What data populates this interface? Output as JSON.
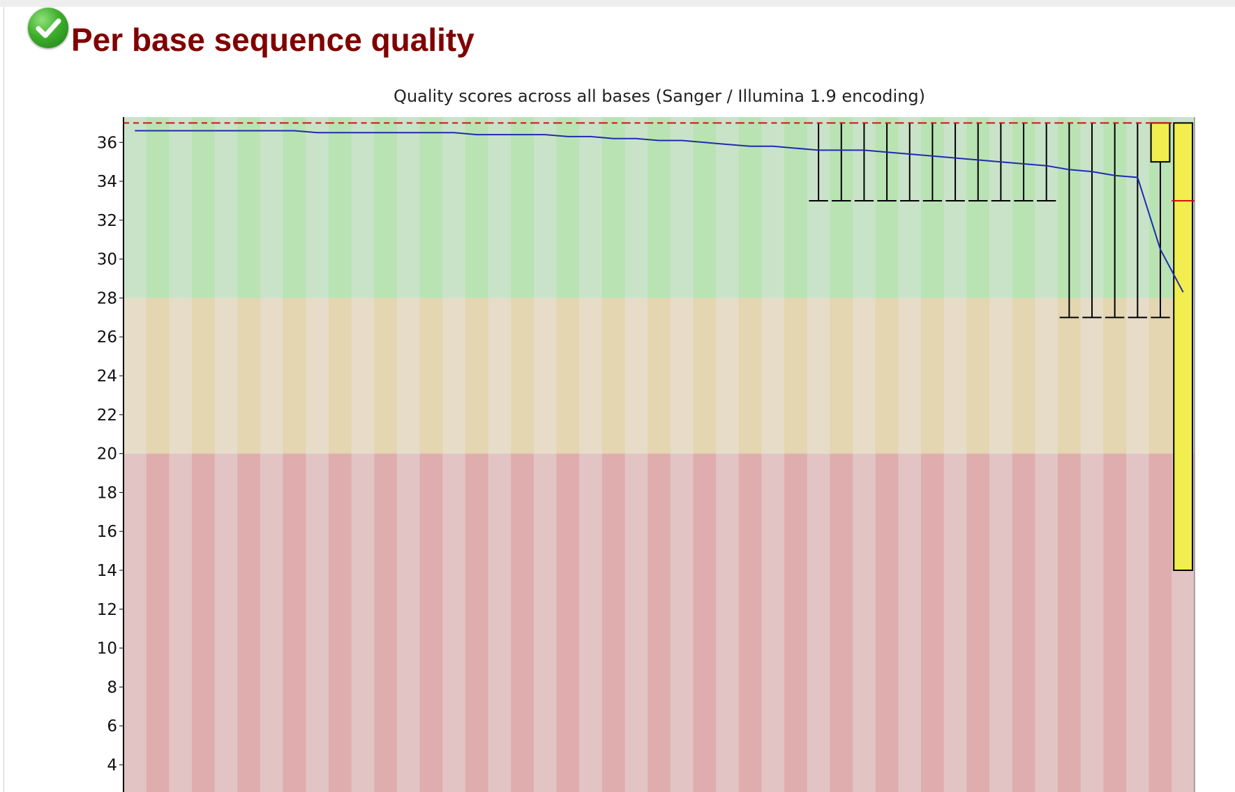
{
  "section": {
    "title": "Per base sequence quality",
    "status_icon": "green-check-icon"
  },
  "chart_data": {
    "type": "box",
    "title": "Quality scores across all bases (Sanger / Illumina 1.9 encoding)",
    "xlabel": "",
    "ylabel": "",
    "yticks": [
      4,
      6,
      8,
      10,
      12,
      14,
      16,
      18,
      20,
      22,
      24,
      26,
      28,
      30,
      32,
      34,
      36
    ],
    "ylim": [
      2.6,
      37.3
    ],
    "zones": [
      {
        "from": 28,
        "to": 37.3,
        "colors": [
          "#c9e3c9",
          "#b9e3b3"
        ]
      },
      {
        "from": 20,
        "to": 28,
        "colors": [
          "#e6dcc8",
          "#e3d6b0"
        ]
      },
      {
        "from": 2.6,
        "to": 20,
        "colors": [
          "#e2c4c4",
          "#dfadad"
        ]
      }
    ],
    "colors": {
      "mean_line": "#1f2bb0",
      "median": "#d01010",
      "box_fill": "#f2ee4f",
      "whisker": "#000000",
      "frame": "#000000"
    },
    "mean": [
      36.6,
      36.6,
      36.6,
      36.6,
      36.6,
      36.6,
      36.6,
      36.6,
      36.5,
      36.5,
      36.5,
      36.5,
      36.5,
      36.5,
      36.5,
      36.4,
      36.4,
      36.4,
      36.4,
      36.3,
      36.3,
      36.2,
      36.2,
      36.1,
      36.1,
      36.0,
      35.9,
      35.8,
      35.8,
      35.7,
      35.6,
      35.6,
      35.6,
      35.5,
      35.4,
      35.3,
      35.2,
      35.1,
      35.0,
      34.9,
      34.8,
      34.6,
      34.5,
      34.3,
      34.2,
      30.5,
      28.3
    ],
    "medians": [
      37,
      37,
      37,
      37,
      37,
      37,
      37,
      37,
      37,
      37,
      37,
      37,
      37,
      37,
      37,
      37,
      37,
      37,
      37,
      37,
      37,
      37,
      37,
      37,
      37,
      37,
      37,
      37,
      37,
      37,
      37,
      37,
      37,
      37,
      37,
      37,
      37,
      37,
      37,
      37,
      37,
      37,
      37,
      37,
      37,
      37,
      33
    ],
    "box_q1": [
      null,
      null,
      null,
      null,
      null,
      null,
      null,
      null,
      null,
      null,
      null,
      null,
      null,
      null,
      null,
      null,
      null,
      null,
      null,
      null,
      null,
      null,
      null,
      null,
      null,
      null,
      null,
      null,
      null,
      null,
      null,
      null,
      null,
      null,
      null,
      null,
      null,
      null,
      null,
      null,
      null,
      null,
      null,
      null,
      null,
      35,
      14
    ],
    "box_q3": [
      null,
      null,
      null,
      null,
      null,
      null,
      null,
      null,
      null,
      null,
      null,
      null,
      null,
      null,
      null,
      null,
      null,
      null,
      null,
      null,
      null,
      null,
      null,
      null,
      null,
      null,
      null,
      null,
      null,
      null,
      null,
      null,
      null,
      null,
      null,
      null,
      null,
      null,
      null,
      null,
      null,
      null,
      null,
      null,
      null,
      37,
      37
    ],
    "whisker_low": [
      null,
      null,
      null,
      null,
      null,
      null,
      null,
      null,
      null,
      null,
      null,
      null,
      null,
      null,
      null,
      null,
      null,
      null,
      null,
      null,
      null,
      null,
      null,
      null,
      null,
      null,
      null,
      null,
      null,
      null,
      33,
      33,
      33,
      33,
      33,
      33,
      33,
      33,
      33,
      33,
      33,
      27,
      27,
      27,
      27,
      27,
      27
    ],
    "whisker_high": [
      null,
      null,
      null,
      null,
      null,
      null,
      null,
      null,
      null,
      null,
      null,
      null,
      null,
      null,
      null,
      null,
      null,
      null,
      null,
      null,
      null,
      null,
      null,
      null,
      null,
      null,
      null,
      null,
      null,
      null,
      37,
      37,
      37,
      37,
      37,
      37,
      37,
      37,
      37,
      37,
      37,
      37,
      37,
      37,
      37,
      37,
      37
    ]
  }
}
